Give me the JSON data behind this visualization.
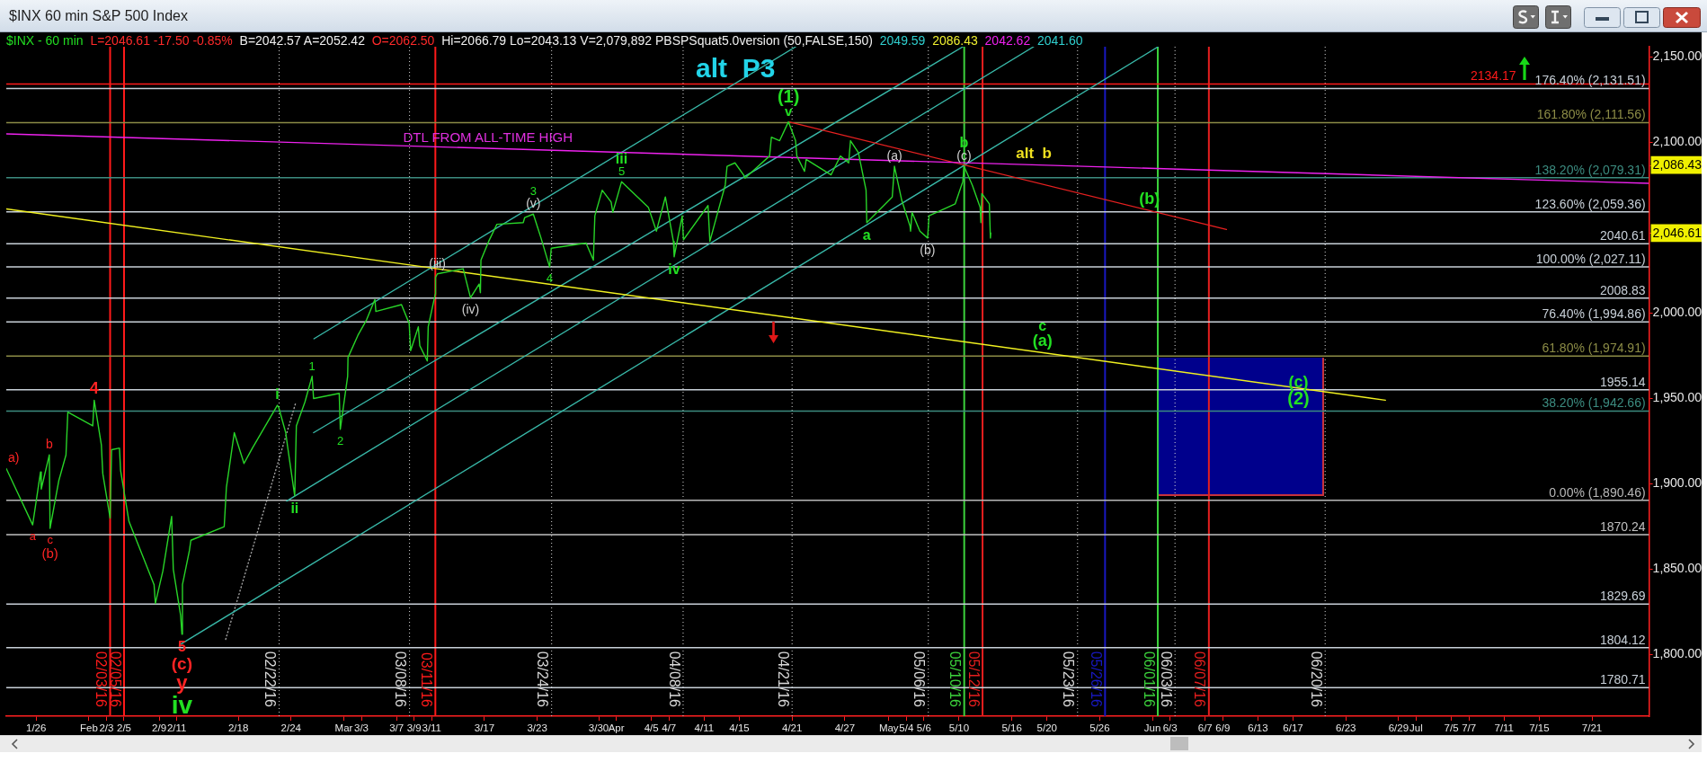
{
  "chart_data": {
    "type": "line",
    "title": "$INX 60 min S&P 500 Index",
    "subtitle": "$INX - 60 min  L=2046.61 -17.50 -0.85%  B=2042.57 A=2052.42  O=2062.50  Hi=2066.79 Lo=2043.13 V=2,079,892 PBSPSquat5.0version (50,FALSE,150)  2049.59  2086.43  2042.62  2041.60",
    "xlim": [
      "--01-22T14:30",
      "--07-27T12:00"
    ],
    "xticks": [
      {
        "value": "--01-26",
        "label": "1/26"
      },
      {
        "value": "--02-01",
        "label": "Feb"
      },
      {
        "value": "--02-03",
        "label": "2/3"
      },
      {
        "value": "--02-05",
        "label": "2/5"
      },
      {
        "value": "--02-09",
        "label": "2/9"
      },
      {
        "value": "--02-11",
        "label": "2/11"
      },
      {
        "value": "--02-18",
        "label": "2/18"
      },
      {
        "value": "--02-24",
        "label": "2/24"
      },
      {
        "value": "--03-01",
        "label": "Mar"
      },
      {
        "value": "--03-03",
        "label": "3/3"
      },
      {
        "value": "--03-07",
        "label": "3/7"
      },
      {
        "value": "--03-09",
        "label": "3/9"
      },
      {
        "value": "--03-11",
        "label": "3/11"
      },
      {
        "value": "--03-17",
        "label": "3/17"
      },
      {
        "value": "--03-23",
        "label": "3/23"
      },
      {
        "value": "--03-30",
        "label": "3/30"
      },
      {
        "value": "--04-01",
        "label": "Apr"
      },
      {
        "value": "--04-05",
        "label": "4/5"
      },
      {
        "value": "--04-07",
        "label": "4/7"
      },
      {
        "value": "--04-11",
        "label": "4/11"
      },
      {
        "value": "--04-15",
        "label": "4/15"
      },
      {
        "value": "--04-21",
        "label": "4/21"
      },
      {
        "value": "--04-27",
        "label": "4/27"
      },
      {
        "value": "--05-02",
        "label": "May"
      },
      {
        "value": "--05-04",
        "label": "5/4"
      },
      {
        "value": "--05-06",
        "label": "5/6"
      },
      {
        "value": "--05-10",
        "label": "5/10"
      },
      {
        "value": "--05-16",
        "label": "5/16"
      },
      {
        "value": "--05-20",
        "label": "5/20"
      },
      {
        "value": "--05-26",
        "label": "5/26"
      },
      {
        "value": "--06-01",
        "label": "Jun"
      },
      {
        "value": "--06-03",
        "label": "6/3"
      },
      {
        "value": "--06-07",
        "label": "6/7"
      },
      {
        "value": "--06-09",
        "label": "6/9"
      },
      {
        "value": "--06-13",
        "label": "6/13"
      },
      {
        "value": "--06-17",
        "label": "6/17"
      },
      {
        "value": "--06-23",
        "label": "6/23"
      },
      {
        "value": "--06-29",
        "label": "6/29"
      },
      {
        "value": "--07-01",
        "label": "Jul"
      },
      {
        "value": "--07-05",
        "label": "7/5"
      },
      {
        "value": "--07-07",
        "label": "7/7"
      },
      {
        "value": "--07-11",
        "label": "7/11"
      },
      {
        "value": "--07-15",
        "label": "7/15"
      },
      {
        "value": "--07-21",
        "label": "7/21"
      }
    ],
    "ylim": [
      1764,
      2156
    ],
    "yticks": [
      {
        "value": 1800,
        "label": "1,800.00"
      },
      {
        "value": 1850,
        "label": "1,850.00"
      },
      {
        "value": 1900,
        "label": "1,900.00"
      },
      {
        "value": 1950,
        "label": "1,950.00"
      },
      {
        "value": 2000,
        "label": "2,000.00"
      },
      {
        "value": 2046.61,
        "label": "2,046.61"
      },
      {
        "value": 2086.43,
        "label": "2,086.43"
      },
      {
        "value": 2100,
        "label": "2,100.00"
      },
      {
        "value": 2150,
        "label": "2,150.00"
      }
    ],
    "series": [
      {
        "type": "line",
        "color": "#28d428",
        "x": [
          "--01-22T14:30",
          "--01-25T14:30",
          "--01-26T12:00",
          "--01-26T14:00",
          "--01-27T12:00",
          "--01-27T14:00",
          "--01-28T14:00",
          "--01-29T09:30",
          "--01-29T14:30",
          "--02-01T10:30",
          "--02-01T14:30",
          "--02-02T10:00",
          "--02-02T14:00",
          "--02-03T10:00",
          "--02-03T14:00",
          "--02-04T11:30",
          "--02-04T14:30",
          "--02-05T13:30",
          "--02-08T10:00",
          "--02-08T13:30",
          "--02-09T10:00",
          "--02-10T10:00",
          "--02-10T14:30",
          "--02-11T10:30",
          "--02-11T14:00",
          "--02-11T15:30",
          "--02-12T10:30",
          "--02-12T14:30",
          "--02-16T09:30",
          "--02-16T15:30",
          "--02-17T13:00",
          "--02-18T15:30",
          "--02-19T14:30",
          "--02-22T10:30",
          "--02-22T14:00",
          "--02-23T09:30",
          "--02-23T14:30",
          "--02-24T10:00",
          "--02-24T12:00",
          "--02-24T14:30",
          "--02-25T14:00",
          "--02-26T09:30",
          "--02-26T13:30",
          "--02-29T11:30",
          "--02-29T14:30",
          "--03-01T10:30",
          "--03-01T11:30",
          "--03-02T14:30",
          "--03-03T14:00",
          "--03-04T13:00",
          "--03-04T15:30",
          "--03-07T13:30",
          "--03-08T10:30",
          "--03-08T14:30",
          "--03-09T11:30",
          "--03-09T15:30",
          "--03-10T12:00",
          "--03-10T14:30",
          "--03-11T09:30",
          "--03-11T10:30",
          "--03-11T15:30",
          "--03-14T14:00",
          "--03-15T10:00",
          "--03-16T09:30",
          "--03-16T13:00",
          "--03-16T14:30",
          "--03-17T11:30",
          "--03-18T10:00",
          "--03-21T10:00",
          "--03-21T14:00",
          "--03-22T13:30",
          "--03-23T10:30",
          "--03-24T10:00",
          "--03-24T14:30",
          "--03-28T13:30",
          "--03-29T09:30",
          "--03-29T13:30",
          "--03-30T09:30",
          "--03-31T10:00",
          "--03-31T14:30",
          "--04-01T14:30",
          "--04-04T15:30",
          "--04-05T13:30",
          "--04-06T14:00",
          "--04-07T12:00",
          "--04-07T14:00",
          "--04-08T12:00",
          "--04-08T15:30",
          "--04-11T10:30",
          "--04-11T15:30",
          "--04-12T13:00",
          "--04-13T09:30",
          "--04-13T14:30",
          "--04-14T12:00",
          "--04-15T11:30",
          "--04-15T15:30",
          "--04-18T10:30",
          "--04-18T15:30",
          "--04-19T14:00",
          "--04-20T14:00",
          "--04-21T09:30",
          "--04-21T13:00",
          "--04-22T10:00",
          "--04-22T14:30",
          "--04-25T10:30",
          "--04-26T12:00",
          "--04-27T10:30",
          "--04-27T15:30",
          "--04-28T13:00",
          "--04-29T10:00",
          "--04-29T12:00",
          "--05-02T09:30",
          "--05-02T15:30",
          "--05-03T11:30",
          "--05-04T10:00",
          "--05-04T11:30",
          "--05-04T15:30",
          "--05-05T13:00",
          "--05-06T10:00",
          "--05-06T14:00",
          "--05-09T13:30",
          "--05-10T10:00",
          "--05-10T13:30",
          "--05-11T12:00",
          "--05-12T09:30",
          "--05-12T11:30",
          "--05-12T14:00",
          "--05-13T10:30",
          "--05-13T13:30",
          "--05-13T14:30"
        ],
        "values": [
          1909,
          1876,
          1907,
          1897,
          1917,
          1874,
          1902,
          1917,
          1942,
          1934,
          1949,
          1923,
          1906,
          1880,
          1920,
          1921,
          1908,
          1878,
          1841,
          1830,
          1849,
          1881,
          1850,
          1823,
          1812,
          1841,
          1861,
          1867,
          1875,
          1898,
          1930,
          1912,
          1921,
          1946,
          1945,
          1930,
          1922,
          1893,
          1911,
          1934,
          1948,
          1963,
          1950,
          1953,
          1932,
          1963,
          1974,
          1987,
          1996,
          2008,
          2001,
          2005,
          1994,
          1978,
          1992,
          1981,
          1972,
          1992,
          2011,
          2021,
          2023,
          2026,
          2009,
          2017,
          2012,
          2031,
          2042,
          2052,
          2053,
          2056,
          2058,
          2044,
          2027,
          2038,
          2041,
          2031,
          2057,
          2072,
          2065,
          2059,
          2077,
          2062,
          2048,
          2068,
          2042,
          2033,
          2057,
          2043,
          2063,
          2042,
          2059,
          2075,
          2086,
          2088,
          2081,
          2079,
          2092,
          2103,
          2101,
          2112,
          2101,
          2092,
          2083,
          2090,
          2081,
          2092,
          2088,
          2101,
          2094,
          2072,
          2053,
          2068,
          2086,
          2066,
          2051,
          2048,
          2059,
          2048,
          2044,
          2057,
          2064,
          2077,
          2086,
          2075,
          2062,
          2053,
          2070,
          2064,
          2044,
          2047
        ]
      },
      {
        "type": "line",
        "color": "#ee22ee",
        "x": [
          "--01-22T14:30",
          "--07-27T10:00"
        ],
        "values": [
          2105,
          2076
        ]
      },
      {
        "type": "line",
        "color": "#f0f020",
        "x": [
          "--01-22T14:30",
          "--06-27T12:00"
        ],
        "values": [
          2061,
          1949
        ]
      },
      {
        "type": "line",
        "color": "#e62020",
        "x": [
          "--04-20T15:30",
          "--06-09T10:00"
        ],
        "values": [
          2112,
          2049
        ]
      },
      {
        "type": "line",
        "color": "#38b8a8",
        "x": [
          "--02-26T14:30",
          "--04-21T10:00"
        ],
        "values": [
          1985,
          2156
        ]
      },
      {
        "type": "line",
        "color": "#38b8a8",
        "x": [
          "--02-26T13:30",
          "--05-10T10:30"
        ],
        "values": [
          1930,
          2156
        ]
      },
      {
        "type": "line",
        "color": "#38b8a8",
        "x": [
          "--02-23T12:00",
          "--05-18T11:30"
        ],
        "values": [
          1890,
          2156
        ]
      },
      {
        "type": "line",
        "color": "#38b8a8",
        "x": [
          "--02-11T10:00",
          "--06-01T15:30"
        ],
        "values": [
          1806,
          2156
        ]
      },
      {
        "type": "line",
        "color": "#a0a0a0",
        "line_style": "dotted",
        "x": [
          "--02-16T13:30",
          "--02-24T12:00"
        ],
        "values": [
          1809,
          1947
        ]
      }
    ],
    "ref_lines": [
      {
        "axis": "x",
        "value": "--02-03T10:00",
        "label": "02/03/16",
        "color": "#ff1a1a"
      },
      {
        "axis": "x",
        "value": "--02-05",
        "label": "02/05/16",
        "color": "#ff1a1a"
      },
      {
        "axis": "x",
        "value": "--02-22T15:30",
        "label": "02/22/16",
        "color": "#d8d8d8",
        "line_style": "dotted"
      },
      {
        "axis": "x",
        "value": "--03-08T11:30",
        "label": "03/08/16",
        "color": "#d8d8d8",
        "line_style": "dotted"
      },
      {
        "axis": "x",
        "value": "--03-11T10:00",
        "label": "03/11/16",
        "color": "#ff1a1a"
      },
      {
        "axis": "x",
        "value": "--03-24T15:30",
        "label": "03/24/16",
        "color": "#d8d8d8",
        "line_style": "dotted"
      },
      {
        "axis": "x",
        "value": "--04-08T14:30",
        "label": "04/08/16",
        "color": "#d8d8d8",
        "line_style": "dotted"
      },
      {
        "axis": "x",
        "value": "--04-21",
        "label": "04/21/16",
        "color": "#d8d8d8",
        "line_style": "dotted"
      },
      {
        "axis": "x",
        "value": "--05-06T12:00",
        "label": "05/06/16",
        "color": "#d8d8d8",
        "line_style": "dotted"
      },
      {
        "axis": "x",
        "value": "--05-10T14:00",
        "label": "05/10/16",
        "color": "#3cd23c"
      },
      {
        "axis": "x",
        "value": "--05-12T16:00",
        "label": "05/12/16",
        "color": "#e61e1e"
      },
      {
        "axis": "x",
        "value": "--05-23T11:30",
        "label": "05/23/16",
        "color": "#d8d8d8",
        "line_style": "dotted"
      },
      {
        "axis": "x",
        "value": "--05-26T14:30",
        "label": "05/26/16",
        "color": "#1818c0"
      },
      {
        "axis": "x",
        "value": "--06-01T14:30",
        "label": "06/01/16",
        "color": "#3cd23c"
      },
      {
        "axis": "x",
        "value": "--06-03T13:30",
        "label": "06/03/16",
        "color": "#d8d8d8",
        "line_style": "dotted"
      },
      {
        "axis": "x",
        "value": "--06-07T10:00",
        "label": "06/07/16",
        "color": "#e61e1e"
      },
      {
        "axis": "x",
        "value": "--06-20T15:30",
        "label": "06/20/16",
        "color": "#d8d8d8",
        "line_style": "dotted"
      },
      {
        "axis": "y",
        "value": 2131.51,
        "label": "176.40% (2,131.51)",
        "color": "#c8d0d8"
      },
      {
        "axis": "y",
        "value": 2134.17,
        "label": "2134.17",
        "color": "#ff1a1a"
      },
      {
        "axis": "y",
        "value": 2111.56,
        "label": "161.80% (2,111.56)",
        "color": "#8c8c46"
      },
      {
        "axis": "y",
        "value": 2079.31,
        "label": "138.20% (2,079.31)",
        "color": "#3c8c80"
      },
      {
        "axis": "y",
        "value": 2059.36,
        "label": "123.60% (2,059.36)",
        "color": "#c8d0d8"
      },
      {
        "axis": "y",
        "value": 2040.61,
        "label": "2040.61",
        "color": "#c8d0d8"
      },
      {
        "axis": "y",
        "value": 2027.11,
        "label": "100.00% (2,027.11)",
        "color": "#c8d0d8"
      },
      {
        "axis": "y",
        "value": 2008.83,
        "label": "2008.83",
        "color": "#c8d0d8"
      },
      {
        "axis": "y",
        "value": 1994.86,
        "label": "76.40% (1,994.86)",
        "color": "#c8d0d8"
      },
      {
        "axis": "y",
        "value": 1974.91,
        "label": "61.80% (1,974.91)",
        "color": "#8c8c46"
      },
      {
        "axis": "y",
        "value": 1955.14,
        "label": "1955.14",
        "color": "#c8d0d8"
      },
      {
        "axis": "y",
        "value": 1942.66,
        "label": "38.20% (1,942.66)",
        "color": "#3c8c80"
      },
      {
        "axis": "y",
        "value": 1890.46,
        "label": "0.00% (1,890.46)",
        "color": "#b8b8b8"
      },
      {
        "axis": "y",
        "value": 1870.24,
        "label": "1870.24",
        "color": "#c0c0c0"
      },
      {
        "axis": "y",
        "value": 1829.69,
        "label": "1829.69",
        "color": "#c8d0d8"
      },
      {
        "axis": "y",
        "value": 1804.12,
        "label": "1804.12",
        "color": "#c8d0d8"
      },
      {
        "axis": "y",
        "value": 1780.71,
        "label": "1780.71",
        "color": "#c8d0d8"
      }
    ],
    "annotations": [
      {
        "text": "alt  P3",
        "x": "--04-14T13:30",
        "y": 2134.17
      },
      {
        "text": "v",
        "x": "--04-20T14:00",
        "y": 2112
      },
      {
        "text": "(1)",
        "x": "--04-20T14:00",
        "y": 2112
      },
      {
        "text": "5",
        "x": "--04-01T14:30",
        "y": 2077
      },
      {
        "text": "iii",
        "x": "--04-01T14:30",
        "y": 2077
      },
      {
        "text": "(v)",
        "x": "--03-22T13:30",
        "y": 2058
      },
      {
        "text": "3",
        "x": "--03-22T13:30",
        "y": 2058
      },
      {
        "text": "(iii)",
        "x": "--03-11T15:30",
        "y": 2023
      },
      {
        "text": "4",
        "x": "--03-24T10:00",
        "y": 2027
      },
      {
        "text": "(iv)",
        "x": "--03-15T10:00",
        "y": 2009
      },
      {
        "text": "1",
        "x": "--02-26T09:30",
        "y": 1963
      },
      {
        "text": "iv",
        "x": "--04-07T14:00",
        "y": 2033
      },
      {
        "text": "a",
        "x": "--04-29T12:00",
        "y": 2053
      },
      {
        "text": "(a)",
        "x": "--05-02T15:30",
        "y": 2086
      },
      {
        "text": "(b)",
        "x": "--05-06T10:00",
        "y": 2044
      },
      {
        "text": "(c)",
        "x": "--05-10T13:30",
        "y": 2086
      },
      {
        "text": "b",
        "x": "--05-10T13:30",
        "y": 2086
      },
      {
        "text": "alt  b",
        "x": "--05-18T12:00",
        "y": 2086.9
      },
      {
        "text": "(b)",
        "x": "--05-31T15:30",
        "y": 2060.1
      },
      {
        "text": "(a)",
        "x": "--05-19T11:30",
        "y": 1976.9
      },
      {
        "text": "c",
        "x": "--05-19T11:30",
        "y": 1976.9
      },
      {
        "text": "(2)",
        "x": "--06-17T14:30",
        "y": 1942.66
      },
      {
        "text": "(c)",
        "x": "--06-17T14:30",
        "y": 1942.66
      },
      {
        "text": "DTL FROM ALL-TIME HIGH",
        "x": "--03-17T09:30",
        "y": 2096.5
      },
      {
        "text": "4",
        "x": "--02-01T14:30",
        "y": 1949
      },
      {
        "text": "a)",
        "x": "--01-22T14:30",
        "y": 1909
      },
      {
        "text": "b",
        "x": "--01-27T12:00",
        "y": 1917
      },
      {
        "text": "a",
        "x": "--01-25T14:30",
        "y": 1876
      },
      {
        "text": "c",
        "x": "--01-27T14:00",
        "y": 1874
      },
      {
        "text": "(b)",
        "x": "--01-27T14:00",
        "y": 1874
      },
      {
        "text": "i",
        "x": "--02-22T10:30",
        "y": 1946
      },
      {
        "text": "2",
        "x": "--02-29T14:30",
        "y": 1932
      },
      {
        "text": "ii",
        "x": "--02-24T10:00",
        "y": 1893
      },
      {
        "text": "5",
        "x": "--02-11T14:00",
        "y": 1812
      },
      {
        "text": "(c)",
        "x": "--02-11T14:00",
        "y": 1812
      },
      {
        "text": "y",
        "x": "--02-11T14:00",
        "y": 1812
      },
      {
        "text": "iv",
        "x": "--02-11T14:00",
        "y": 1812
      }
    ]
  }
}
